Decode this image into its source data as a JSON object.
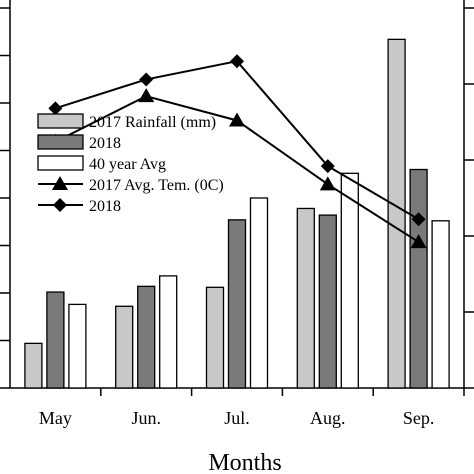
{
  "chart_data": {
    "type": "bar",
    "categories": [
      "May",
      "Jun.",
      "Jul.",
      "Aug.",
      "Sep."
    ],
    "xlabel": "Months",
    "bar_ylim": [
      0,
      400
    ],
    "bar_series": [
      {
        "name": "2017 Rainfall (mm)",
        "color": "#c8c8c8",
        "values": [
          47,
          86,
          106,
          189,
          367
        ]
      },
      {
        "name": "2018",
        "color": "#7a7a7a",
        "values": [
          101,
          107,
          177,
          182,
          230
        ]
      },
      {
        "name": "40 year Avg",
        "color": "#ffffff",
        "values": [
          88,
          118,
          200,
          226,
          176
        ]
      }
    ],
    "line_ylim": [
      5,
      30
    ],
    "line_series": [
      {
        "name": "2017 Avg. Tem. (0C)",
        "marker": "triangle",
        "values": [
          21.2,
          24.2,
          22.6,
          18.4,
          14.6
        ]
      },
      {
        "name": "2018",
        "marker": "diamond",
        "values": [
          23.4,
          25.3,
          26.5,
          19.6,
          16.1
        ]
      }
    ]
  }
}
